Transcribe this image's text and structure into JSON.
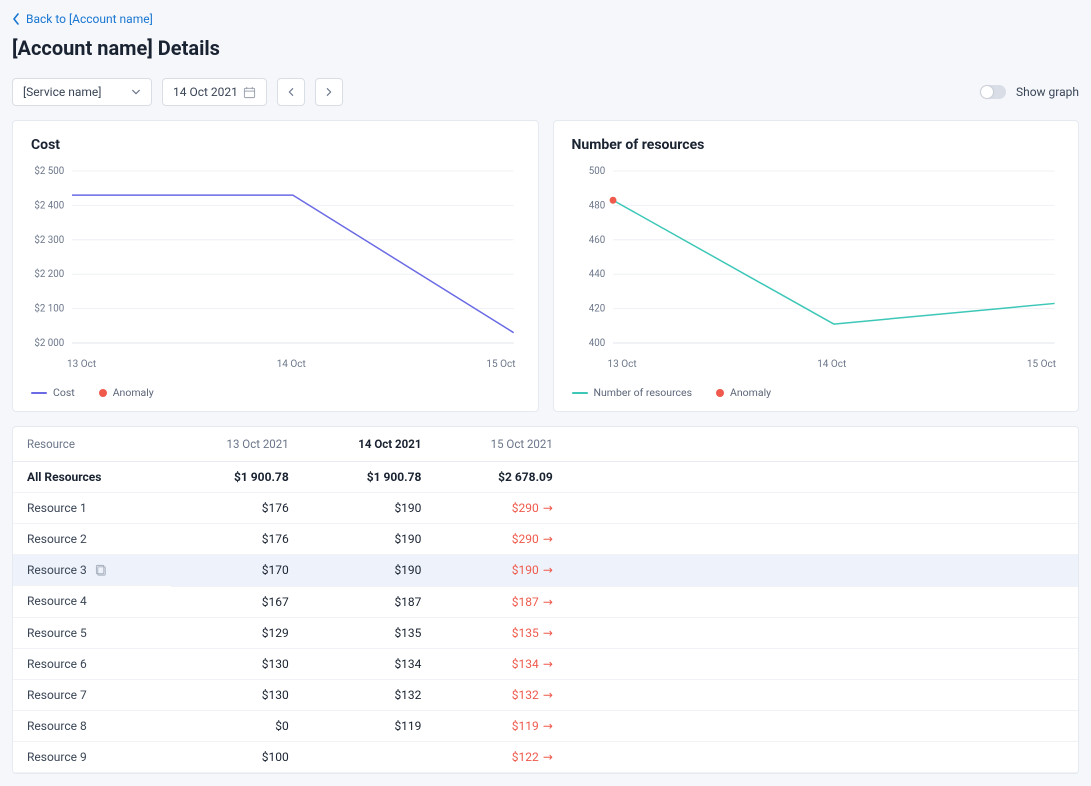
{
  "nav": {
    "back_label": "Back to [Account name]"
  },
  "page": {
    "title": "[Account name] Details"
  },
  "controls": {
    "service_label": "[Service name]",
    "date_label": "14 Oct 2021",
    "toggle_label": "Show graph"
  },
  "cost_chart": {
    "title": "Cost",
    "type": "line",
    "categories": [
      "13 Oct",
      "14 Oct",
      "15 Oct"
    ],
    "values": [
      2430,
      2430,
      2030
    ],
    "ylim": [
      2000,
      2500
    ],
    "ytick_step": 100,
    "ytick_prefix": "$",
    "ytick_format": "space-thousand",
    "line_color": "#6a6ae5",
    "line_width": 1.5,
    "anomaly_color": "#ef5a4c",
    "anomalies": [],
    "grid_color": "#eef1f6",
    "background_color": "#ffffff",
    "legend": [
      {
        "type": "line",
        "label": "Cost",
        "color": "#6a6ae5"
      },
      {
        "type": "dot",
        "label": "Anomaly",
        "color": "#ef5a4c"
      }
    ],
    "label_fontsize": 10
  },
  "resources_chart": {
    "title": "Number of resources",
    "type": "line",
    "categories": [
      "13 Oct",
      "14 Oct",
      "15 Oct"
    ],
    "values": [
      483,
      411,
      423
    ],
    "ylim": [
      400,
      500
    ],
    "ytick_step": 20,
    "ytick_prefix": "",
    "line_color": "#3cc7b7",
    "line_width": 1.5,
    "anomaly_color": "#ef5a4c",
    "anomalies": [
      0
    ],
    "grid_color": "#eef1f6",
    "background_color": "#ffffff",
    "legend": [
      {
        "type": "line",
        "label": "Number of resources",
        "color": "#3cc7b7"
      },
      {
        "type": "dot",
        "label": "Anomaly",
        "color": "#ef5a4c"
      }
    ],
    "label_fontsize": 10
  },
  "table": {
    "columns": [
      "Resource",
      "13 Oct 2021",
      "14 Oct 2021",
      "15 Oct 2021"
    ],
    "active_col": 2,
    "summary": {
      "label": "All Resources",
      "v1": "$1 900.78",
      "v2": "$1 900.78",
      "v3": "$2 678.09"
    },
    "rows": [
      {
        "label": "Resource 1",
        "v1": "$176",
        "v2": "$190",
        "v3": "$290",
        "v3_anom": true,
        "selected": false
      },
      {
        "label": "Resource 2",
        "v1": "$176",
        "v2": "$190",
        "v3": "$290",
        "v3_anom": true,
        "selected": false
      },
      {
        "label": "Resource 3",
        "v1": "$170",
        "v2": "$190",
        "v3": "$190",
        "v3_anom": true,
        "selected": true
      },
      {
        "label": "Resource 4",
        "v1": "$167",
        "v2": "$187",
        "v3": "$187",
        "v3_anom": true,
        "selected": false
      },
      {
        "label": "Resource 5",
        "v1": "$129",
        "v2": "$135",
        "v3": "$135",
        "v3_anom": true,
        "selected": false
      },
      {
        "label": "Resource 6",
        "v1": "$130",
        "v2": "$134",
        "v3": "$134",
        "v3_anom": true,
        "selected": false
      },
      {
        "label": "Resource 7",
        "v1": "$130",
        "v2": "$132",
        "v3": "$132",
        "v3_anom": true,
        "selected": false
      },
      {
        "label": "Resource 8",
        "v1": "$0",
        "v2": "$119",
        "v3": "$119",
        "v3_anom": true,
        "selected": false
      },
      {
        "label": "Resource 9",
        "v1": "$100",
        "v2": "",
        "v3": "$122",
        "v3_anom": true,
        "selected": false
      }
    ]
  }
}
